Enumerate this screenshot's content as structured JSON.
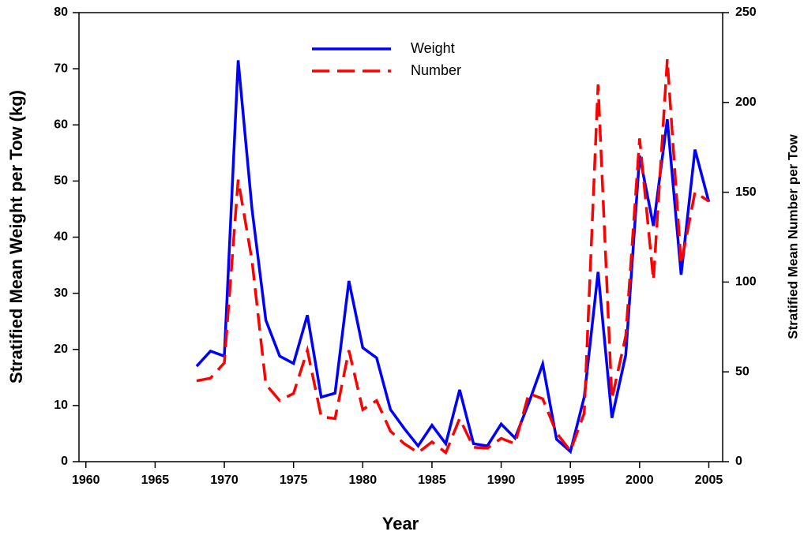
{
  "chart_data": {
    "type": "line",
    "xlabel": "Year",
    "ylabel": "Stratified Mean Weight per Tow (kg)",
    "y2label": "Stratified Mean Number per Tow",
    "x": [
      1968,
      1969,
      1970,
      1971,
      1972,
      1973,
      1974,
      1975,
      1976,
      1977,
      1978,
      1979,
      1980,
      1981,
      1982,
      1983,
      1984,
      1985,
      1986,
      1987,
      1988,
      1989,
      1990,
      1991,
      1992,
      1993,
      1994,
      1995,
      1996,
      1997,
      1998,
      1999,
      2000,
      2001,
      2002,
      2003,
      2004,
      2005
    ],
    "series": [
      {
        "name": "Weight",
        "color": "#0000ff",
        "dash": "solid",
        "values": [
          17,
          19.7,
          18.8,
          71.5,
          45,
          25.2,
          18.8,
          17.5,
          26.1,
          11.5,
          12.2,
          32.2,
          20.3,
          18.5,
          9.3,
          5.9,
          2.8,
          6.5,
          3.2,
          12.8,
          3.2,
          2.8,
          6.7,
          4.2,
          10.5,
          17.4,
          4.0,
          1.8,
          11.5,
          33.8,
          7.8,
          19,
          54.5,
          42,
          61,
          33.3,
          55.6,
          46.3
        ]
      },
      {
        "name": "Number",
        "color": "#ff0000",
        "dash": "dashed",
        "axis": "y2",
        "values": [
          45,
          46.5,
          55,
          157,
          112,
          43,
          34,
          38,
          62,
          25,
          24,
          62,
          29,
          34,
          17,
          10,
          5,
          11,
          5,
          24,
          8,
          7.5,
          13,
          10,
          38,
          35,
          16,
          6,
          27,
          210,
          35,
          70,
          180,
          101,
          224,
          110,
          150,
          145
        ]
      }
    ],
    "xlim": [
      1959.5,
      2006
    ],
    "xticks": [
      1960,
      1965,
      1970,
      1975,
      1980,
      1985,
      1990,
      1995,
      2000,
      2005
    ],
    "ylim": [
      0,
      80
    ],
    "yticks": [
      0,
      10,
      20,
      30,
      40,
      50,
      60,
      70,
      80
    ],
    "y2lim": [
      0,
      250
    ],
    "y2ticks": [
      0,
      50,
      100,
      150,
      200,
      250
    ],
    "legend": "top"
  }
}
